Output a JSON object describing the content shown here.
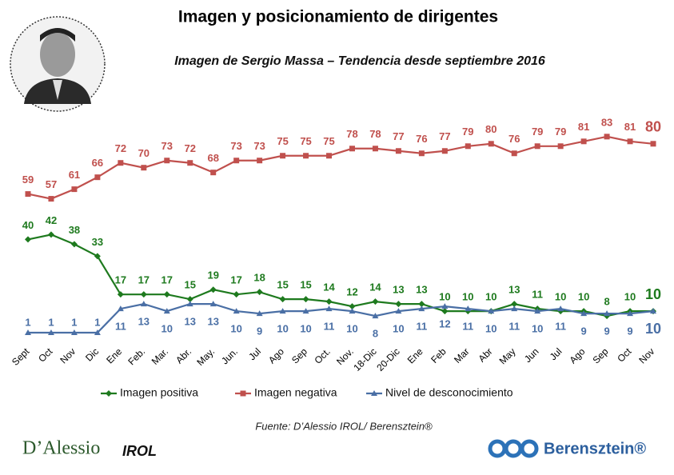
{
  "chart_data": {
    "type": "line",
    "title": "Imagen y posicionamiento de dirigentes",
    "subtitle": "Imagen de Sergio Massa – Tendencia desde septiembre 2016",
    "categories": [
      "Sept",
      "Oct",
      "Nov",
      "Dic",
      "Ene",
      "Feb.",
      "Mar.",
      "Abr.",
      "May.",
      "Jun.",
      "Jul",
      "Ago",
      "Sep",
      "Oct.",
      "Nov.",
      "18-Dic",
      "20-Dic",
      "Ene",
      "Feb",
      "Mar",
      "Abr",
      "May",
      "Jun",
      "Jul",
      "Ago",
      "Sep",
      "Oct",
      "Nov"
    ],
    "series": [
      {
        "name": "Imagen positiva",
        "color": "#1e7a1e",
        "values": [
          40,
          42,
          38,
          33,
          17,
          17,
          17,
          15,
          19,
          17,
          18,
          15,
          15,
          14,
          12,
          14,
          13,
          13,
          10,
          10,
          10,
          13,
          11,
          10,
          10,
          8,
          10,
          10
        ]
      },
      {
        "name": "Imagen negativa",
        "color": "#c0504d",
        "values": [
          59,
          57,
          61,
          66,
          72,
          70,
          73,
          72,
          68,
          73,
          73,
          75,
          75,
          75,
          78,
          78,
          77,
          76,
          77,
          79,
          80,
          76,
          79,
          79,
          81,
          83,
          81,
          80
        ]
      },
      {
        "name": "Nivel de desconocimiento",
        "color": "#4a6fa5",
        "values": [
          1,
          1,
          1,
          1,
          11,
          13,
          10,
          13,
          13,
          10,
          9,
          10,
          10,
          11,
          10,
          8,
          10,
          11,
          12,
          11,
          10,
          11,
          10,
          11,
          9,
          9,
          9,
          10
        ]
      }
    ],
    "source": "Fuente: D’Alessio IROL/ Berensztein®",
    "logos": [
      "D’Alessio",
      "IROL",
      "Berensztein®"
    ]
  }
}
